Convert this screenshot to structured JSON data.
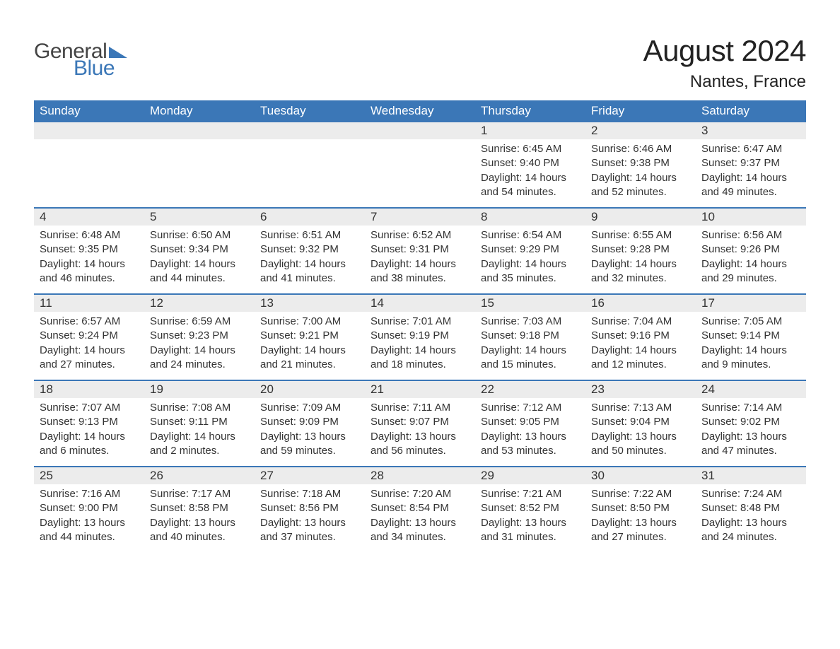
{
  "brand": {
    "word1": "General",
    "word2": "Blue"
  },
  "colors": {
    "brand_blue": "#3b77b7",
    "header_bg": "#3b77b7",
    "header_text": "#ffffff",
    "daynum_bg": "#ececec",
    "text": "#333333",
    "page_bg": "#ffffff",
    "week_divider": "#3b77b7"
  },
  "typography": {
    "title_fontsize": 42,
    "location_fontsize": 24,
    "dow_fontsize": 17,
    "daynum_fontsize": 17,
    "detail_fontsize": 15
  },
  "title": "August 2024",
  "location": "Nantes, France",
  "days_of_week": [
    "Sunday",
    "Monday",
    "Tuesday",
    "Wednesday",
    "Thursday",
    "Friday",
    "Saturday"
  ],
  "weeks": [
    [
      null,
      null,
      null,
      null,
      {
        "n": "1",
        "sr": "Sunrise: 6:45 AM",
        "ss": "Sunset: 9:40 PM",
        "dl1": "Daylight: 14 hours",
        "dl2": "and 54 minutes."
      },
      {
        "n": "2",
        "sr": "Sunrise: 6:46 AM",
        "ss": "Sunset: 9:38 PM",
        "dl1": "Daylight: 14 hours",
        "dl2": "and 52 minutes."
      },
      {
        "n": "3",
        "sr": "Sunrise: 6:47 AM",
        "ss": "Sunset: 9:37 PM",
        "dl1": "Daylight: 14 hours",
        "dl2": "and 49 minutes."
      }
    ],
    [
      {
        "n": "4",
        "sr": "Sunrise: 6:48 AM",
        "ss": "Sunset: 9:35 PM",
        "dl1": "Daylight: 14 hours",
        "dl2": "and 46 minutes."
      },
      {
        "n": "5",
        "sr": "Sunrise: 6:50 AM",
        "ss": "Sunset: 9:34 PM",
        "dl1": "Daylight: 14 hours",
        "dl2": "and 44 minutes."
      },
      {
        "n": "6",
        "sr": "Sunrise: 6:51 AM",
        "ss": "Sunset: 9:32 PM",
        "dl1": "Daylight: 14 hours",
        "dl2": "and 41 minutes."
      },
      {
        "n": "7",
        "sr": "Sunrise: 6:52 AM",
        "ss": "Sunset: 9:31 PM",
        "dl1": "Daylight: 14 hours",
        "dl2": "and 38 minutes."
      },
      {
        "n": "8",
        "sr": "Sunrise: 6:54 AM",
        "ss": "Sunset: 9:29 PM",
        "dl1": "Daylight: 14 hours",
        "dl2": "and 35 minutes."
      },
      {
        "n": "9",
        "sr": "Sunrise: 6:55 AM",
        "ss": "Sunset: 9:28 PM",
        "dl1": "Daylight: 14 hours",
        "dl2": "and 32 minutes."
      },
      {
        "n": "10",
        "sr": "Sunrise: 6:56 AM",
        "ss": "Sunset: 9:26 PM",
        "dl1": "Daylight: 14 hours",
        "dl2": "and 29 minutes."
      }
    ],
    [
      {
        "n": "11",
        "sr": "Sunrise: 6:57 AM",
        "ss": "Sunset: 9:24 PM",
        "dl1": "Daylight: 14 hours",
        "dl2": "and 27 minutes."
      },
      {
        "n": "12",
        "sr": "Sunrise: 6:59 AM",
        "ss": "Sunset: 9:23 PM",
        "dl1": "Daylight: 14 hours",
        "dl2": "and 24 minutes."
      },
      {
        "n": "13",
        "sr": "Sunrise: 7:00 AM",
        "ss": "Sunset: 9:21 PM",
        "dl1": "Daylight: 14 hours",
        "dl2": "and 21 minutes."
      },
      {
        "n": "14",
        "sr": "Sunrise: 7:01 AM",
        "ss": "Sunset: 9:19 PM",
        "dl1": "Daylight: 14 hours",
        "dl2": "and 18 minutes."
      },
      {
        "n": "15",
        "sr": "Sunrise: 7:03 AM",
        "ss": "Sunset: 9:18 PM",
        "dl1": "Daylight: 14 hours",
        "dl2": "and 15 minutes."
      },
      {
        "n": "16",
        "sr": "Sunrise: 7:04 AM",
        "ss": "Sunset: 9:16 PM",
        "dl1": "Daylight: 14 hours",
        "dl2": "and 12 minutes."
      },
      {
        "n": "17",
        "sr": "Sunrise: 7:05 AM",
        "ss": "Sunset: 9:14 PM",
        "dl1": "Daylight: 14 hours",
        "dl2": "and 9 minutes."
      }
    ],
    [
      {
        "n": "18",
        "sr": "Sunrise: 7:07 AM",
        "ss": "Sunset: 9:13 PM",
        "dl1": "Daylight: 14 hours",
        "dl2": "and 6 minutes."
      },
      {
        "n": "19",
        "sr": "Sunrise: 7:08 AM",
        "ss": "Sunset: 9:11 PM",
        "dl1": "Daylight: 14 hours",
        "dl2": "and 2 minutes."
      },
      {
        "n": "20",
        "sr": "Sunrise: 7:09 AM",
        "ss": "Sunset: 9:09 PM",
        "dl1": "Daylight: 13 hours",
        "dl2": "and 59 minutes."
      },
      {
        "n": "21",
        "sr": "Sunrise: 7:11 AM",
        "ss": "Sunset: 9:07 PM",
        "dl1": "Daylight: 13 hours",
        "dl2": "and 56 minutes."
      },
      {
        "n": "22",
        "sr": "Sunrise: 7:12 AM",
        "ss": "Sunset: 9:05 PM",
        "dl1": "Daylight: 13 hours",
        "dl2": "and 53 minutes."
      },
      {
        "n": "23",
        "sr": "Sunrise: 7:13 AM",
        "ss": "Sunset: 9:04 PM",
        "dl1": "Daylight: 13 hours",
        "dl2": "and 50 minutes."
      },
      {
        "n": "24",
        "sr": "Sunrise: 7:14 AM",
        "ss": "Sunset: 9:02 PM",
        "dl1": "Daylight: 13 hours",
        "dl2": "and 47 minutes."
      }
    ],
    [
      {
        "n": "25",
        "sr": "Sunrise: 7:16 AM",
        "ss": "Sunset: 9:00 PM",
        "dl1": "Daylight: 13 hours",
        "dl2": "and 44 minutes."
      },
      {
        "n": "26",
        "sr": "Sunrise: 7:17 AM",
        "ss": "Sunset: 8:58 PM",
        "dl1": "Daylight: 13 hours",
        "dl2": "and 40 minutes."
      },
      {
        "n": "27",
        "sr": "Sunrise: 7:18 AM",
        "ss": "Sunset: 8:56 PM",
        "dl1": "Daylight: 13 hours",
        "dl2": "and 37 minutes."
      },
      {
        "n": "28",
        "sr": "Sunrise: 7:20 AM",
        "ss": "Sunset: 8:54 PM",
        "dl1": "Daylight: 13 hours",
        "dl2": "and 34 minutes."
      },
      {
        "n": "29",
        "sr": "Sunrise: 7:21 AM",
        "ss": "Sunset: 8:52 PM",
        "dl1": "Daylight: 13 hours",
        "dl2": "and 31 minutes."
      },
      {
        "n": "30",
        "sr": "Sunrise: 7:22 AM",
        "ss": "Sunset: 8:50 PM",
        "dl1": "Daylight: 13 hours",
        "dl2": "and 27 minutes."
      },
      {
        "n": "31",
        "sr": "Sunrise: 7:24 AM",
        "ss": "Sunset: 8:48 PM",
        "dl1": "Daylight: 13 hours",
        "dl2": "and 24 minutes."
      }
    ]
  ]
}
